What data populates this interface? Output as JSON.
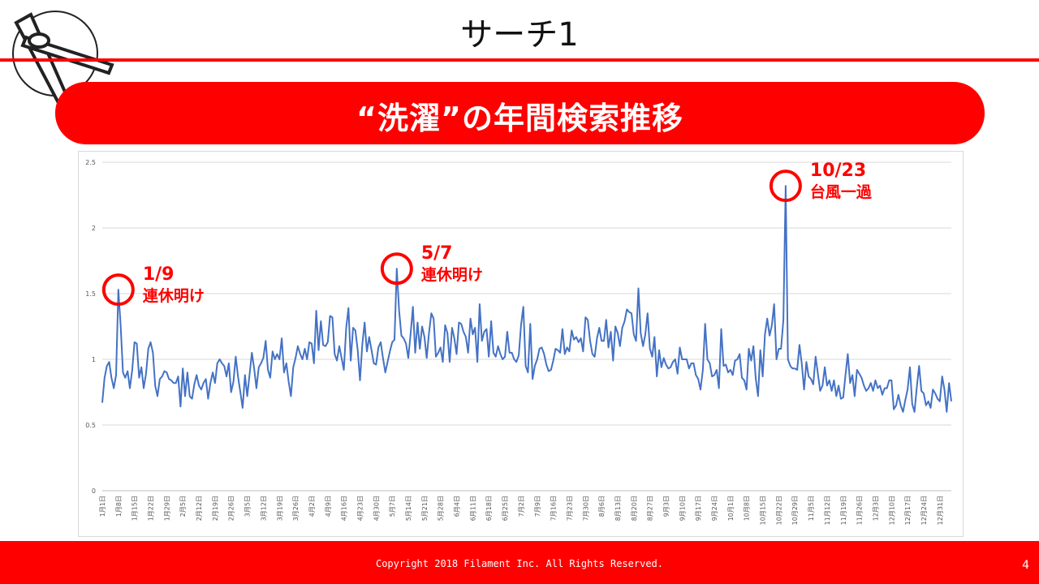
{
  "slide": {
    "title": "サーチ1",
    "banner": "“洗濯”の年間検索推移",
    "copyright": "Copyright 2018 Filament Inc. All Rights Reserved.",
    "page_number": "4",
    "logo_icon": "clothespin-icon",
    "accent_color": "#ff0000"
  },
  "chart_data": {
    "type": "line",
    "title": "",
    "xlabel": "",
    "ylabel": "",
    "ylim": [
      0,
      2.5
    ],
    "yticks": [
      0,
      0.5,
      1,
      1.5,
      2,
      2.5
    ],
    "ytick_labels": [
      "0",
      "0.5",
      "1",
      "1.5",
      "2",
      "2.5"
    ],
    "grid": true,
    "line_color": "#4472c4",
    "x_tick_labels": [
      "1月1日",
      "1月8日",
      "1月15日",
      "1月22日",
      "1月29日",
      "2月5日",
      "2月12日",
      "2月19日",
      "2月26日",
      "3月5日",
      "3月12日",
      "3月19日",
      "3月26日",
      "4月2日",
      "4月9日",
      "4月16日",
      "4月23日",
      "4月30日",
      "5月7日",
      "5月14日",
      "5月21日",
      "5月28日",
      "6月4日",
      "6月11日",
      "6月18日",
      "6月25日",
      "7月2日",
      "7月9日",
      "7月16日",
      "7月23日",
      "7月30日",
      "8月6日",
      "8月13日",
      "8月20日",
      "8月27日",
      "9月3日",
      "9月10日",
      "9月17日",
      "9月24日",
      "10月1日",
      "10月8日",
      "10月15日",
      "10月22日",
      "10月29日",
      "11月5日",
      "11月12日",
      "11月19日",
      "11月26日",
      "12月3日",
      "12月10日",
      "12月17日",
      "12月24日",
      "12月31日"
    ],
    "x_start_month_day": "1月1日",
    "x_end_month_day": "12月31日",
    "series": [
      {
        "values_weekly_anchor": "x_tick_labels",
        "values": [
          0.67,
          0.86,
          0.95,
          0.98,
          0.86,
          0.78,
          0.88,
          1.53,
          1.25,
          0.9,
          0.86,
          0.91,
          0.78,
          0.92,
          1.13,
          1.12,
          0.86,
          0.94,
          0.78,
          0.89,
          1.08,
          1.13,
          1.05,
          0.8,
          0.72,
          0.85,
          0.87,
          0.91,
          0.9,
          0.85,
          0.84,
          0.82,
          0.82,
          0.87,
          0.64,
          0.93,
          0.72,
          0.9,
          0.72,
          0.7,
          0.81,
          0.88,
          0.8,
          0.77,
          0.82,
          0.85,
          0.7,
          0.82,
          0.9,
          0.82,
          0.97,
          1.0,
          0.97,
          0.95,
          0.87,
          0.97,
          0.75,
          0.83,
          1.02,
          0.87,
          0.75,
          0.63,
          0.88,
          0.72,
          0.88,
          1.05,
          0.93,
          0.78,
          0.94,
          0.97,
          1.01,
          1.14,
          0.92,
          0.86,
          1.06,
          1.0,
          1.04,
          1.0,
          1.16,
          0.9,
          0.97,
          0.83,
          0.72,
          0.94,
          1.01,
          1.1,
          1.04,
          1.0,
          1.08,
          1.0,
          1.13,
          1.12,
          0.97,
          1.37,
          1.07,
          1.29,
          1.11,
          1.1,
          1.13,
          1.33,
          1.32,
          1.04,
          0.99,
          1.1,
          1.01,
          0.92,
          1.24,
          1.39,
          0.99,
          1.24,
          1.22,
          1.07,
          0.84,
          1.11,
          1.28,
          1.06,
          1.17,
          1.07,
          0.97,
          0.96,
          1.09,
          1.13,
          1.01,
          0.9,
          0.98,
          1.06,
          1.13,
          1.15,
          1.69,
          1.37,
          1.18,
          1.16,
          1.12,
          1.01,
          1.19,
          1.4,
          1.05,
          1.28,
          1.08,
          1.25,
          1.17,
          1.01,
          1.2,
          1.35,
          1.31,
          1.02,
          1.05,
          1.09,
          0.98,
          1.26,
          1.2,
          0.98,
          1.24,
          1.16,
          1.04,
          1.28,
          1.27,
          1.21,
          1.17,
          1.05,
          1.31,
          1.19,
          1.24,
          0.98,
          1.42,
          1.14,
          1.21,
          1.23,
          1.02,
          1.29,
          1.05,
          1.02,
          1.1,
          1.04,
          1.0,
          1.02,
          1.21,
          1.05,
          1.05,
          1.0,
          0.98,
          1.03,
          1.26,
          1.4,
          0.95,
          0.9,
          1.27,
          0.85,
          0.95,
          1.0,
          1.08,
          1.09,
          1.04,
          0.96,
          0.91,
          0.92,
          0.99,
          1.08,
          1.07,
          1.05,
          1.23,
          1.04,
          1.09,
          1.06,
          1.22,
          1.15,
          1.17,
          1.13,
          1.16,
          1.06,
          1.32,
          1.3,
          1.14,
          1.04,
          1.02,
          1.16,
          1.24,
          1.14,
          1.14,
          1.3,
          1.09,
          1.21,
          0.99,
          1.25,
          1.2,
          1.1,
          1.24,
          1.29,
          1.38,
          1.36,
          1.35,
          1.19,
          1.14,
          1.54,
          1.2,
          1.1,
          1.19,
          1.35,
          1.08,
          1.02,
          1.17,
          0.87,
          1.07,
          0.94,
          1.01,
          0.96,
          0.93,
          0.94,
          0.98,
          1.0,
          0.89,
          1.09,
          1.0,
          1.0,
          1.0,
          0.93,
          0.97,
          0.97,
          0.88,
          0.85,
          0.77,
          0.92,
          1.27,
          1.0,
          0.97,
          0.87,
          0.88,
          0.92,
          0.78,
          1.23,
          0.95,
          0.96,
          0.9,
          0.92,
          0.88,
          0.99,
          1.0,
          1.04,
          0.86,
          0.84,
          0.77,
          1.08,
          0.99,
          1.1,
          0.85,
          0.72,
          1.07,
          0.87,
          1.19,
          1.31,
          1.18,
          1.26,
          1.42,
          1.0,
          1.08,
          1.08,
          1.3,
          2.32,
          1.0,
          0.95,
          0.93,
          0.93,
          0.92,
          1.11,
          0.97,
          0.77,
          0.98,
          0.87,
          0.85,
          0.81,
          1.02,
          0.89,
          0.76,
          0.8,
          0.94,
          0.8,
          0.84,
          0.76,
          0.84,
          0.72,
          0.8,
          0.7,
          0.71,
          0.88,
          1.04,
          0.82,
          0.88,
          0.72,
          0.92,
          0.89,
          0.86,
          0.8,
          0.76,
          0.78,
          0.82,
          0.76,
          0.84,
          0.78,
          0.8,
          0.73,
          0.78,
          0.78,
          0.84,
          0.84,
          0.62,
          0.65,
          0.73,
          0.65,
          0.6,
          0.69,
          0.77,
          0.94,
          0.66,
          0.6,
          0.79,
          0.95,
          0.76,
          0.74,
          0.65,
          0.68,
          0.63,
          0.77,
          0.74,
          0.7,
          0.68,
          0.87,
          0.77,
          0.6,
          0.82,
          0.68
        ]
      }
    ],
    "annotations": [
      {
        "x_label": "1/9",
        "y": 1.53,
        "lines": [
          "1/9",
          "連休明け"
        ]
      },
      {
        "x_label": "5/7",
        "y": 1.69,
        "lines": [
          "5/7",
          "連休明け"
        ]
      },
      {
        "x_label": "10/23",
        "y": 2.32,
        "lines": [
          "10/23",
          "台風一過"
        ]
      }
    ]
  }
}
